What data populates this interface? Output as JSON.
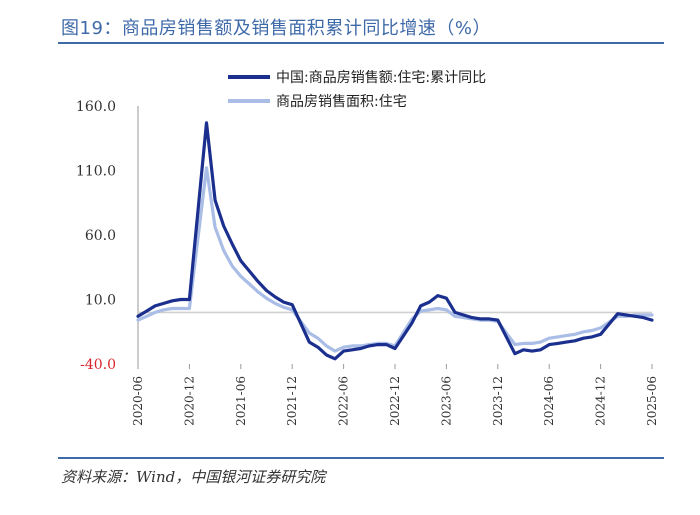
{
  "title": "图19：商品房销售额及销售面积累计同比增速（%）",
  "source": "资料来源：Wind，中国银河证券研究院",
  "colors": {
    "title": "#3f6aa9",
    "series_dark": "#1b2f8e",
    "series_light": "#a9bde6",
    "negative_tick": "#d9262c",
    "zero_line": "#d0d0d0"
  },
  "chart_data": {
    "type": "line",
    "x_ticks": [
      "2020-06",
      "2020-12",
      "2021-06",
      "2021-12",
      "2022-06",
      "2022-12",
      "2023-06",
      "2023-12",
      "2024-06",
      "2024-12",
      "2025-06"
    ],
    "y_ticks": [
      "160.0",
      "110.0",
      "60.0",
      "10.0",
      "-40.0"
    ],
    "ylim": [
      -40,
      160
    ],
    "xlim": [
      "2020-06",
      "2025-06"
    ],
    "baseline": 0,
    "legend_position": "top-center",
    "series": [
      {
        "name": "中国:商品房销售额:住宅:累计同比",
        "x": [
          "2020-06",
          "2020-07",
          "2020-08",
          "2020-09",
          "2020-10",
          "2020-11",
          "2020-12",
          "2021-02",
          "2021-03",
          "2021-04",
          "2021-05",
          "2021-06",
          "2021-07",
          "2021-08",
          "2021-09",
          "2021-10",
          "2021-11",
          "2021-12",
          "2022-02",
          "2022-03",
          "2022-04",
          "2022-05",
          "2022-06",
          "2022-07",
          "2022-08",
          "2022-09",
          "2022-10",
          "2022-11",
          "2022-12",
          "2023-02",
          "2023-03",
          "2023-04",
          "2023-05",
          "2023-06",
          "2023-07",
          "2023-08",
          "2023-09",
          "2023-10",
          "2023-11",
          "2023-12",
          "2024-02",
          "2024-03",
          "2024-04",
          "2024-05",
          "2024-06",
          "2024-07",
          "2024-08",
          "2024-09",
          "2024-10",
          "2024-11",
          "2024-12",
          "2025-02",
          "2025-03",
          "2025-04",
          "2025-05",
          "2025-06"
        ],
        "y": [
          -3,
          1,
          5,
          7,
          9,
          10,
          10,
          147,
          87,
          67,
          53,
          40,
          32,
          24,
          17,
          12,
          8,
          6,
          -23,
          -27,
          -33,
          -36,
          -30,
          -29,
          -28,
          -26,
          -25,
          -25,
          -28,
          -8,
          5,
          8,
          13,
          11,
          0,
          -2,
          -4,
          -5,
          -5,
          -6,
          -32,
          -29,
          -30,
          -29,
          -25,
          -24,
          -23,
          -22,
          -20,
          -19,
          -17,
          -1,
          -2,
          -3,
          -4,
          -6
        ]
      },
      {
        "name": "商品房销售面积:住宅",
        "x": [
          "2020-06",
          "2020-07",
          "2020-08",
          "2020-09",
          "2020-10",
          "2020-11",
          "2020-12",
          "2021-02",
          "2021-03",
          "2021-04",
          "2021-05",
          "2021-06",
          "2021-07",
          "2021-08",
          "2021-09",
          "2021-10",
          "2021-11",
          "2021-12",
          "2022-02",
          "2022-03",
          "2022-04",
          "2022-05",
          "2022-06",
          "2022-07",
          "2022-08",
          "2022-09",
          "2022-10",
          "2022-11",
          "2022-12",
          "2023-02",
          "2023-03",
          "2023-04",
          "2023-05",
          "2023-06",
          "2023-07",
          "2023-08",
          "2023-09",
          "2023-10",
          "2023-11",
          "2023-12",
          "2024-02",
          "2024-03",
          "2024-04",
          "2024-05",
          "2024-06",
          "2024-07",
          "2024-08",
          "2024-09",
          "2024-10",
          "2024-11",
          "2024-12",
          "2025-02",
          "2025-03",
          "2025-04",
          "2025-05",
          "2025-06"
        ],
        "y": [
          -6,
          -3,
          0,
          2,
          3,
          3,
          3,
          112,
          66,
          48,
          36,
          28,
          22,
          16,
          11,
          7,
          4,
          2,
          -16,
          -20,
          -26,
          -30,
          -27,
          -26,
          -26,
          -25,
          -24,
          -24,
          -26,
          -5,
          1,
          2,
          3,
          2,
          -3,
          -4,
          -5,
          -6,
          -6,
          -7,
          -25,
          -24,
          -24,
          -23,
          -20,
          -19,
          -18,
          -17,
          -15,
          -14,
          -12,
          -3,
          -3,
          -2,
          -2,
          -2
        ]
      }
    ]
  }
}
